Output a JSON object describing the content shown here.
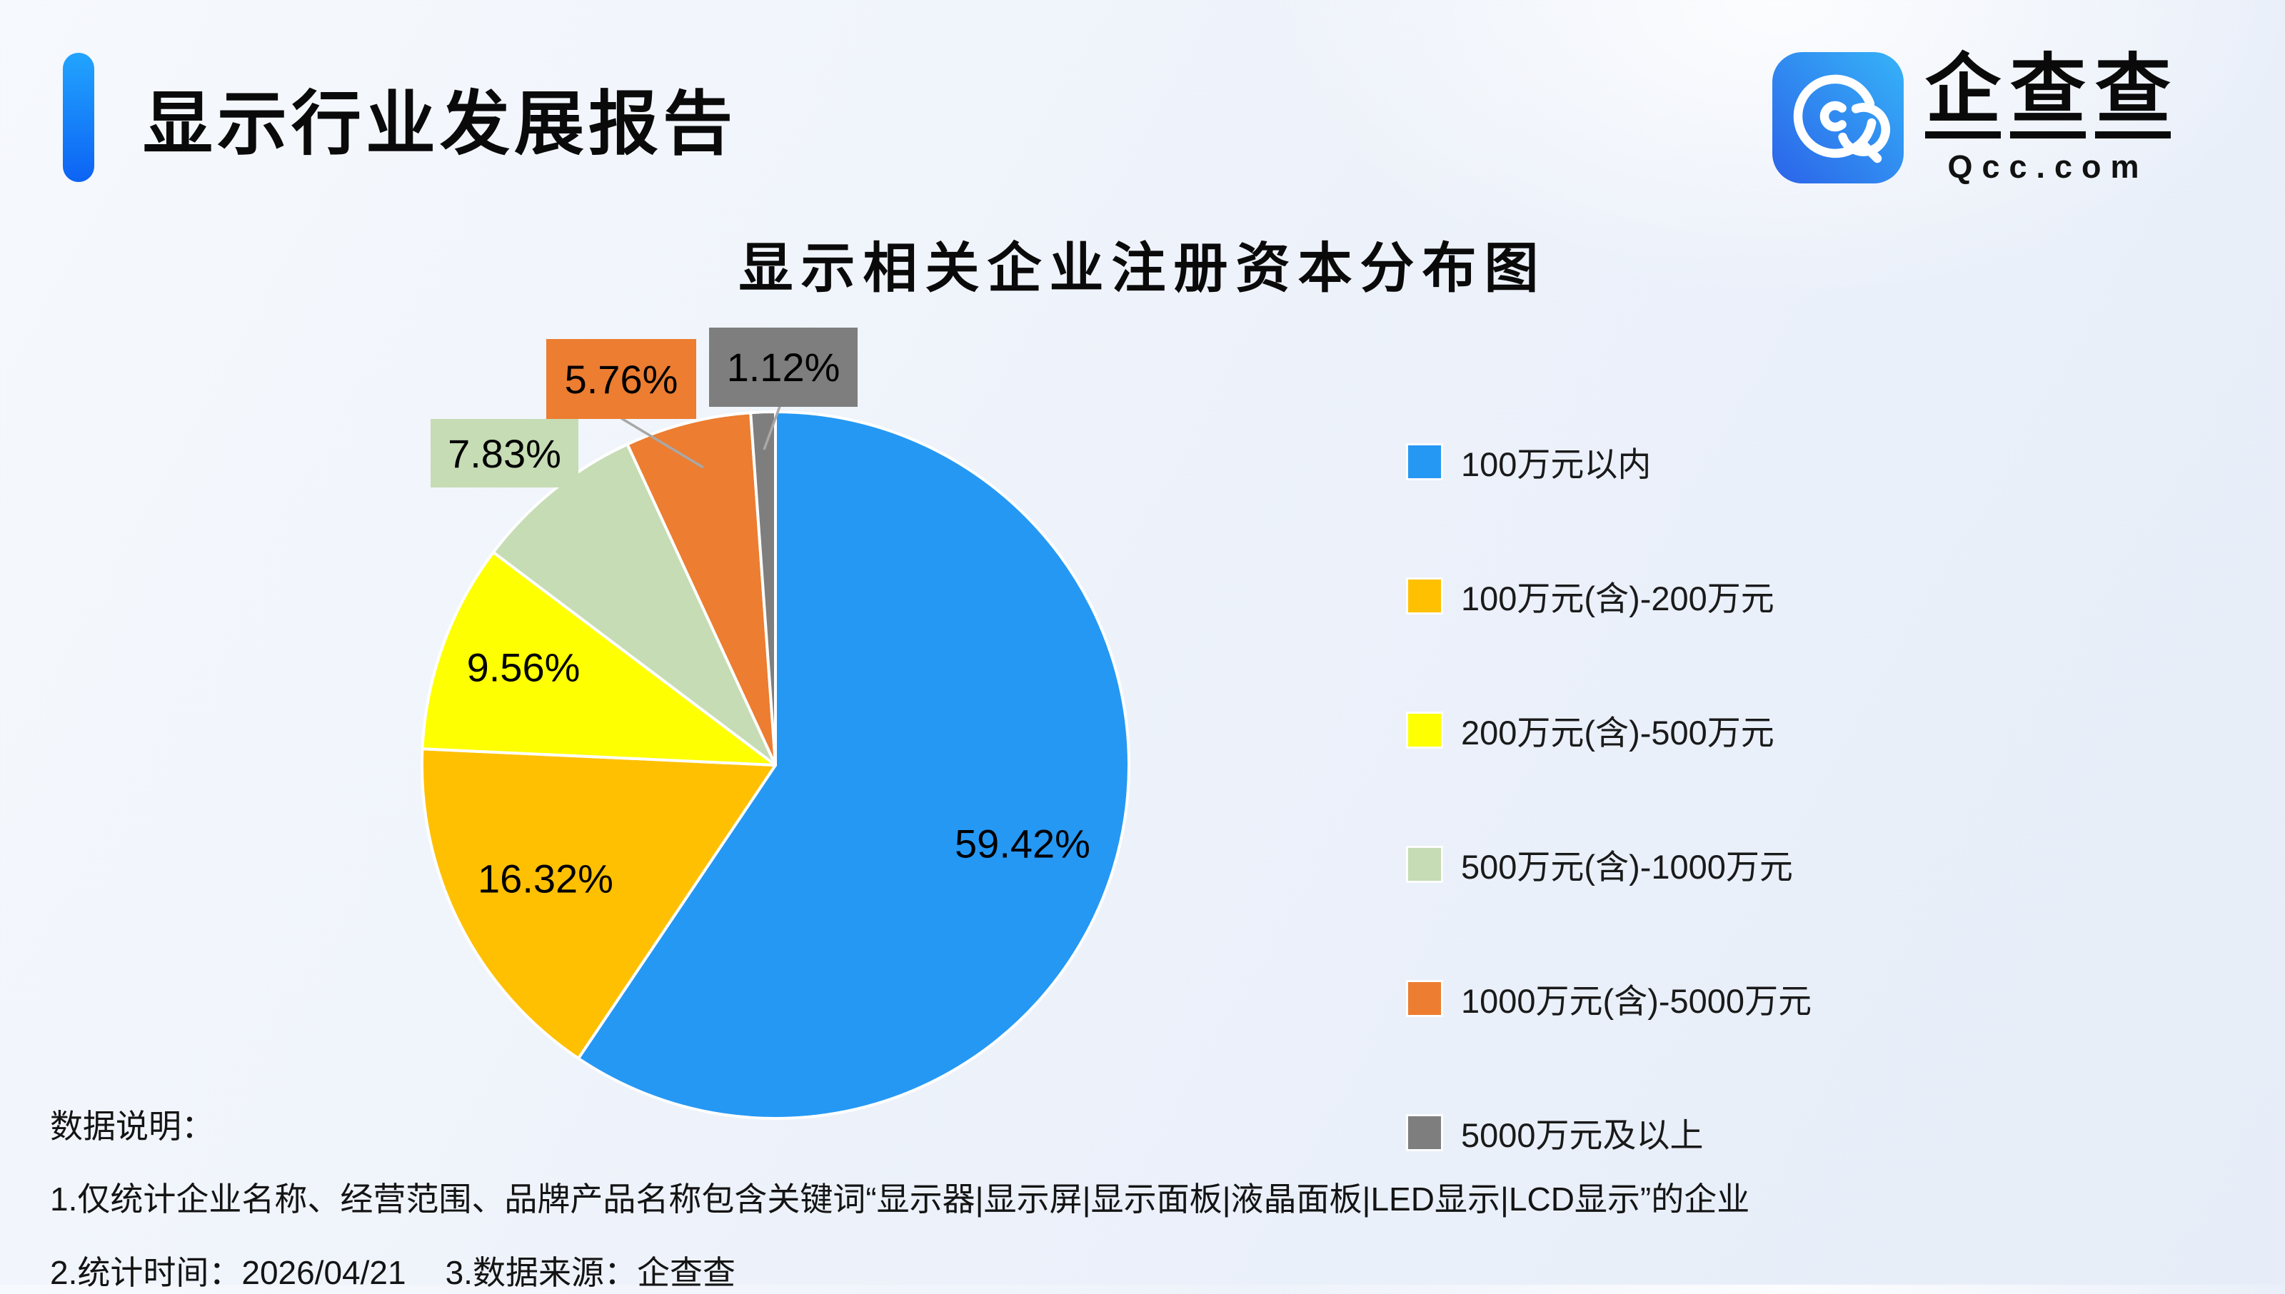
{
  "header": {
    "title": "显示行业发展报告"
  },
  "logo": {
    "cn_chars": [
      "企",
      "查",
      "查"
    ],
    "domain": "Qcc.com",
    "icon_gradient": [
      "#2b63e9",
      "#36b3f8"
    ]
  },
  "chart_data": {
    "type": "pie",
    "title": "显示相关企业注册资本分布图",
    "unit": "%",
    "start_angle": "top",
    "direction": "clockwise",
    "legend_position": "right",
    "label_style": "percent",
    "slices": [
      {
        "label": "100万元以内",
        "value": 59.42,
        "pct": "59.42%",
        "color": "#2598f4"
      },
      {
        "label": "100万元(含)-200万元",
        "value": 16.32,
        "pct": "16.32%",
        "color": "#ffc002"
      },
      {
        "label": "200万元(含)-500万元",
        "value": 9.56,
        "pct": "9.56%",
        "color": "#feff00"
      },
      {
        "label": "500万元(含)-1000万元",
        "value": 7.83,
        "pct": "7.83%",
        "color": "#c6dcb4"
      },
      {
        "label": "1000万元(含)-5000万元",
        "value": 5.76,
        "pct": "5.76%",
        "color": "#ec7d31"
      },
      {
        "label": "5000万元及以上",
        "value": 1.12,
        "pct": "1.12%",
        "color": "#7e7e7e"
      }
    ]
  },
  "footer": {
    "heading": "数据说明：",
    "note1": "1.仅统计企业名称、经营范围、品牌产品名称包含关键词“显示器|显示屏|显示面板|液晶面板|LED显示|LCD显示”的企业",
    "note2": "2.统计时间：2026/04/21",
    "note3": "3.数据来源：企查查"
  }
}
